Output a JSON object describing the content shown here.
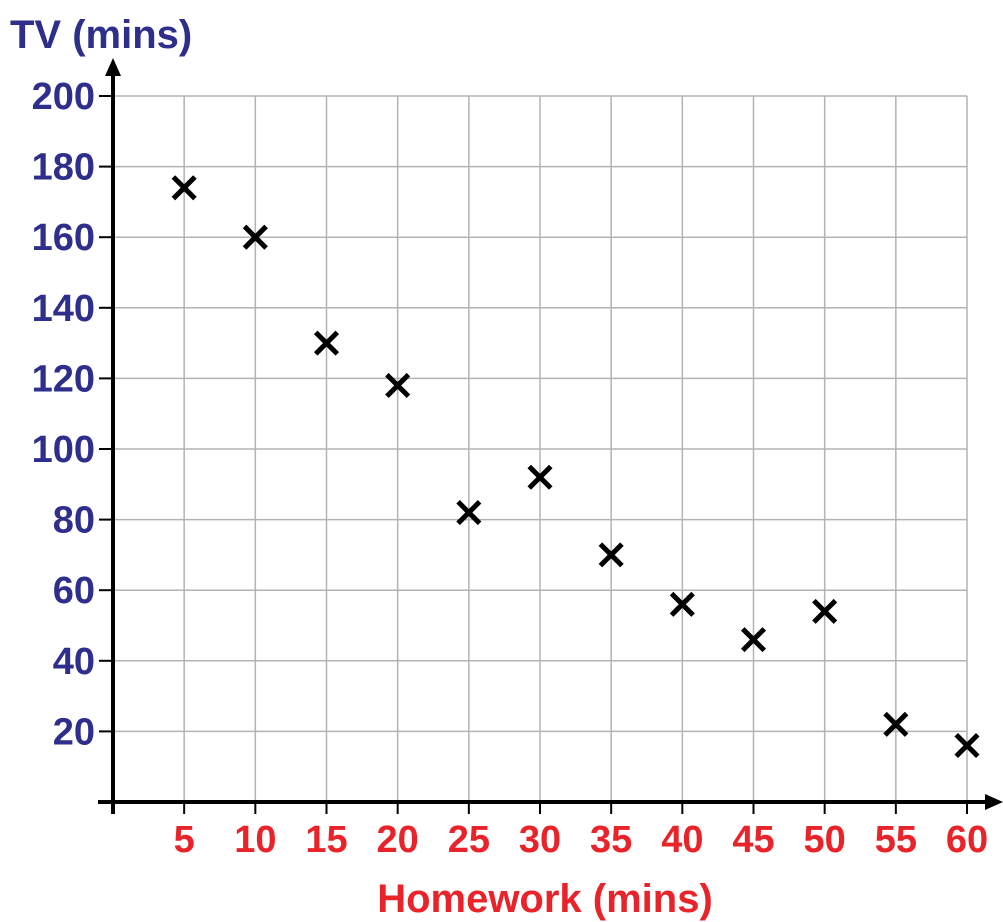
{
  "chart_data": {
    "type": "scatter",
    "xlabel": "Homework (mins)",
    "ylabel": "TV (mins)",
    "x_ticks": [
      5,
      10,
      15,
      20,
      25,
      30,
      35,
      40,
      45,
      50,
      55,
      60
    ],
    "y_ticks": [
      20,
      40,
      60,
      80,
      100,
      120,
      140,
      160,
      180,
      200
    ],
    "xlim": [
      0,
      60
    ],
    "ylim": [
      0,
      200
    ],
    "grid": true,
    "marker": "cross",
    "series": [
      {
        "x": [
          5,
          10,
          15,
          20,
          25,
          30,
          35,
          40,
          45,
          50,
          55,
          60
        ],
        "y": [
          174,
          160,
          130,
          118,
          82,
          92,
          70,
          56,
          46,
          54,
          22,
          16
        ]
      }
    ]
  },
  "colors": {
    "y_axis_text": "#2e2e8c",
    "x_axis_text": "#e8242a",
    "grid": "#b3b3b3",
    "axis": "#000000",
    "marker": "#000000"
  }
}
